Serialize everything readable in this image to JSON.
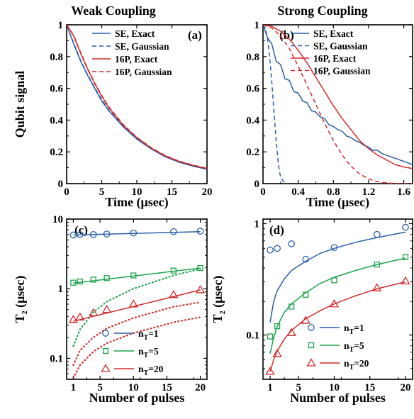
{
  "figure": {
    "column_titles": [
      "Weak Coupling",
      "Strong Coupling"
    ]
  },
  "chart_data": [
    {
      "panel": "(a)",
      "type": "line",
      "xlabel": "Time (μsec)",
      "ylabel": "Qubit signal",
      "xlim": [
        0,
        20
      ],
      "ylim": [
        0,
        1
      ],
      "xticks": [
        0,
        5,
        10,
        15,
        20
      ],
      "yticks": [
        0,
        0.2,
        0.4,
        0.6,
        0.8,
        1
      ],
      "ytick_labels": [
        "0",
        "0.2",
        "0.4",
        "0.6",
        "0.8",
        "1"
      ],
      "legend_position": "top-right",
      "series": [
        {
          "name": "SE, Exact",
          "color": "#2a5fa8",
          "dash": "solid",
          "x": [
            0,
            1,
            2,
            3,
            4,
            5,
            6,
            8,
            10,
            12,
            14,
            16,
            18,
            20
          ],
          "y": [
            1.0,
            0.88,
            0.77,
            0.68,
            0.6,
            0.52,
            0.46,
            0.36,
            0.28,
            0.22,
            0.17,
            0.135,
            0.11,
            0.09
          ]
        },
        {
          "name": "SE, Gaussian",
          "color": "#2a5fa8",
          "dash": "dashed",
          "x": [
            0,
            1,
            2,
            3,
            4,
            5,
            6,
            8,
            10,
            12,
            14,
            16,
            18,
            20
          ],
          "y": [
            1.0,
            0.885,
            0.775,
            0.685,
            0.605,
            0.53,
            0.465,
            0.365,
            0.285,
            0.225,
            0.175,
            0.14,
            0.115,
            0.095
          ]
        },
        {
          "name": "16P, Exact",
          "color": "#d42a2a",
          "dash": "solid",
          "x": [
            0,
            1,
            2,
            3,
            4,
            5,
            6,
            8,
            10,
            12,
            14,
            16,
            18,
            20
          ],
          "y": [
            1.0,
            0.93,
            0.82,
            0.72,
            0.63,
            0.55,
            0.48,
            0.37,
            0.29,
            0.225,
            0.175,
            0.14,
            0.115,
            0.095
          ]
        },
        {
          "name": "16P, Gaussian",
          "color": "#d42a2a",
          "dash": "dashed",
          "x": [
            0,
            1,
            2,
            3,
            4,
            5,
            6,
            8,
            10,
            12,
            14,
            16,
            18,
            20
          ],
          "y": [
            1.0,
            0.935,
            0.825,
            0.725,
            0.635,
            0.555,
            0.485,
            0.375,
            0.292,
            0.228,
            0.178,
            0.142,
            0.117,
            0.097
          ]
        }
      ]
    },
    {
      "panel": "(b)",
      "type": "line",
      "xlabel": "Time (μsec)",
      "ylabel": "",
      "xlim": [
        0,
        1.7
      ],
      "ylim": [
        0,
        1
      ],
      "xticks": [
        0,
        0.4,
        0.8,
        1.2,
        1.6
      ],
      "xtick_labels": [
        "0",
        "0.4",
        "0.8",
        "1.2",
        "1.6"
      ],
      "yticks": [
        0,
        0.2,
        0.4,
        0.6,
        0.8,
        1
      ],
      "ytick_labels": [
        "0",
        "0.2",
        "0.4",
        "0.6",
        "0.8",
        "1"
      ],
      "legend_position": "top-right",
      "series": [
        {
          "name": "SE, Exact",
          "color": "#2a5fa8",
          "dash": "solid",
          "x": [
            0,
            0.05,
            0.1,
            0.15,
            0.2,
            0.25,
            0.3,
            0.35,
            0.4,
            0.45,
            0.5,
            0.55,
            0.6,
            0.65,
            0.7,
            0.75,
            0.8,
            0.85,
            0.9,
            0.95,
            1.0,
            1.05,
            1.1,
            1.15,
            1.2,
            1.25,
            1.3,
            1.35,
            1.4,
            1.45,
            1.5,
            1.55,
            1.6,
            1.65,
            1.7
          ],
          "y": [
            1.0,
            0.92,
            0.88,
            0.77,
            0.75,
            0.66,
            0.65,
            0.58,
            0.57,
            0.52,
            0.51,
            0.46,
            0.45,
            0.42,
            0.41,
            0.37,
            0.36,
            0.34,
            0.33,
            0.3,
            0.29,
            0.27,
            0.26,
            0.24,
            0.23,
            0.21,
            0.21,
            0.19,
            0.18,
            0.17,
            0.16,
            0.15,
            0.14,
            0.13,
            0.12
          ]
        },
        {
          "name": "SE, Gaussian",
          "color": "#2a5fa8",
          "dash": "dashed",
          "x": [
            0,
            0.025,
            0.05,
            0.075,
            0.1,
            0.125,
            0.15,
            0.175,
            0.2,
            0.25
          ],
          "y": [
            1.0,
            0.98,
            0.92,
            0.8,
            0.64,
            0.45,
            0.27,
            0.12,
            0.04,
            0.0
          ]
        },
        {
          "name": "16P, Exact",
          "color": "#d42a2a",
          "dash": "solid",
          "x": [
            0,
            0.1,
            0.2,
            0.3,
            0.4,
            0.5,
            0.6,
            0.7,
            0.8,
            0.9,
            1.0,
            1.1,
            1.2,
            1.3,
            1.4,
            1.5,
            1.6,
            1.7
          ],
          "y": [
            1.0,
            0.99,
            0.96,
            0.91,
            0.84,
            0.76,
            0.67,
            0.58,
            0.49,
            0.41,
            0.34,
            0.27,
            0.22,
            0.18,
            0.15,
            0.12,
            0.105,
            0.095
          ]
        },
        {
          "name": "16P, Gaussian",
          "color": "#d42a2a",
          "dash": "dashed",
          "x": [
            0,
            0.1,
            0.2,
            0.3,
            0.4,
            0.5,
            0.6,
            0.7,
            0.8,
            0.9,
            1.0,
            1.1,
            1.2,
            1.3,
            1.4,
            1.5,
            1.6,
            1.7
          ],
          "y": [
            1.0,
            0.98,
            0.93,
            0.85,
            0.74,
            0.62,
            0.5,
            0.38,
            0.27,
            0.18,
            0.11,
            0.06,
            0.03,
            0.012,
            0.004,
            0.001,
            0.0,
            0.0
          ]
        }
      ]
    },
    {
      "panel": "(c)",
      "type": "scatter",
      "xlabel": "Number of pulses",
      "ylabel": "T2 (μsec)",
      "yscale": "log",
      "xlim": [
        0,
        21
      ],
      "ylim": [
        0.05,
        10
      ],
      "xticks": [
        1,
        5,
        10,
        15,
        20
      ],
      "yticks": [
        0.1,
        1,
        10
      ],
      "ytick_labels": [
        "0.1",
        "1",
        "10"
      ],
      "legend_position": "bottom-right",
      "series": [
        {
          "name": "nT=1",
          "color": "#2a5fa8",
          "marker": "circle",
          "x": [
            1,
            2,
            4,
            6,
            10,
            16,
            20
          ],
          "y": [
            5.9,
            6.0,
            6.0,
            6.1,
            6.3,
            6.6,
            6.7
          ],
          "fit_solid": {
            "x": [
              1,
              20
            ],
            "y": [
              5.9,
              6.6
            ]
          }
        },
        {
          "name": "nT=5",
          "color": "#1aa34a",
          "marker": "square",
          "x": [
            1,
            2,
            4,
            6,
            10,
            16,
            20
          ],
          "y": [
            1.22,
            1.27,
            1.35,
            1.42,
            1.55,
            1.82,
            1.98
          ],
          "fit_solid": {
            "x": [
              1,
              20
            ],
            "y": [
              1.2,
              1.98
            ]
          },
          "fit_dotted": {
            "x": [
              1,
              2,
              4,
              6,
              10,
              16,
              20
            ],
            "y": [
              0.15,
              0.26,
              0.46,
              0.65,
              1.0,
              1.55,
              1.93
            ]
          }
        },
        {
          "name": "nT=20",
          "color": "#d42a2a",
          "marker": "triangle",
          "x": [
            1,
            2,
            4,
            6,
            10,
            16,
            20
          ],
          "y": [
            0.36,
            0.39,
            0.45,
            0.5,
            0.6,
            0.82,
            0.96
          ],
          "fit_solid": {
            "x": [
              1,
              20
            ],
            "y": [
              0.34,
              0.96
            ]
          },
          "fit_dotted": {
            "x": [
              1,
              2,
              4,
              6,
              10,
              16,
              20
            ],
            "y": [
              0.08,
              0.13,
              0.2,
              0.27,
              0.38,
              0.55,
              0.64
            ]
          }
        },
        {
          "name": "",
          "color": "#d42a2a",
          "marker": "none",
          "fit_dotted": {
            "x": [
              1,
              2,
              4,
              6,
              10,
              16,
              20
            ],
            "y": [
              0.052,
              0.08,
              0.125,
              0.165,
              0.23,
              0.33,
              0.39
            ]
          }
        }
      ]
    },
    {
      "panel": "(d)",
      "type": "scatter",
      "xlabel": "Number of pulses",
      "ylabel": "T2 (μsec)",
      "yscale": "log",
      "xlim": [
        0,
        21
      ],
      "ylim": [
        0.04,
        1.1
      ],
      "xticks": [
        1,
        5,
        10,
        15,
        20
      ],
      "yticks": [
        0.1,
        1
      ],
      "ytick_labels": [
        "0.1",
        "1"
      ],
      "legend_position": "bottom-right",
      "series": [
        {
          "name": "nT=1",
          "color": "#2a5fa8",
          "marker": "circle",
          "x": [
            1,
            2,
            4,
            6,
            10,
            16,
            20
          ],
          "y": [
            0.58,
            0.6,
            0.66,
            0.48,
            0.61,
            0.8,
            0.93
          ],
          "fit_solid": {
            "x": [
              1,
              1.5,
              2,
              3,
              4,
              6,
              8,
              10,
              13,
              16,
              20
            ],
            "y": [
              0.13,
              0.2,
              0.25,
              0.32,
              0.38,
              0.46,
              0.54,
              0.6,
              0.68,
              0.75,
              0.84
            ]
          }
        },
        {
          "name": "nT=5",
          "color": "#1aa34a",
          "marker": "square",
          "x": [
            1,
            2,
            4,
            6,
            10,
            16,
            20
          ],
          "y": [
            0.097,
            0.12,
            0.18,
            0.23,
            0.31,
            0.43,
            0.5
          ],
          "fit_solid": {
            "x": [
              1,
              1.5,
              2,
              3,
              4,
              6,
              8,
              10,
              13,
              16,
              20
            ],
            "y": [
              0.068,
              0.095,
              0.12,
              0.16,
              0.19,
              0.24,
              0.29,
              0.33,
              0.38,
              0.43,
              0.49
            ]
          }
        },
        {
          "name": "nT=20",
          "color": "#d42a2a",
          "marker": "triangle",
          "x": [
            1,
            2,
            4,
            6,
            10,
            16,
            20
          ],
          "y": [
            0.047,
            0.068,
            0.105,
            0.135,
            0.19,
            0.265,
            0.305
          ],
          "fit_solid": {
            "x": [
              1,
              1.5,
              2,
              3,
              4,
              6,
              8,
              10,
              13,
              16,
              20
            ],
            "y": [
              0.047,
              0.06,
              0.072,
              0.092,
              0.11,
              0.14,
              0.165,
              0.19,
              0.225,
              0.26,
              0.3
            ]
          }
        }
      ]
    }
  ]
}
